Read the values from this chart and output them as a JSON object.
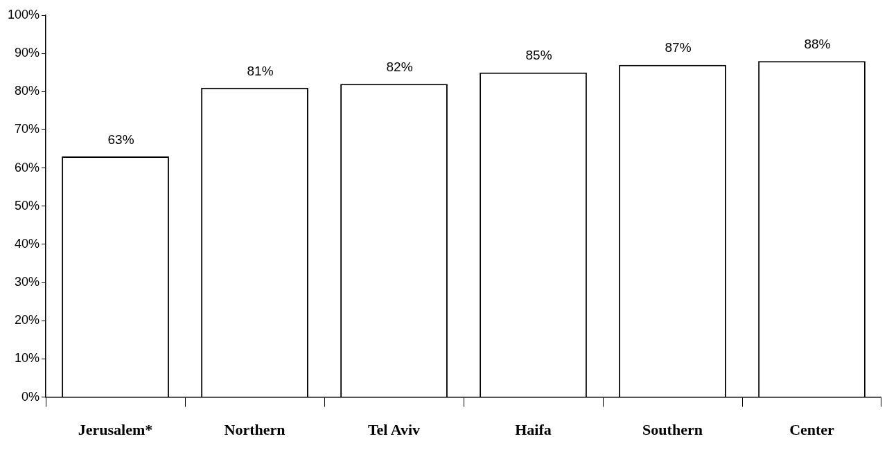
{
  "chart_data": {
    "type": "bar",
    "categories": [
      "Jerusalem*",
      "Northern",
      "Tel Aviv",
      "Haifa",
      "Southern",
      "Center"
    ],
    "values": [
      63,
      81,
      82,
      85,
      87,
      88
    ],
    "color": "#ffffff",
    "ylim": [
      0,
      100
    ],
    "yticks": [
      {
        "value": 0,
        "label": "0%"
      },
      {
        "value": 10,
        "label": "10%"
      },
      {
        "value": 20,
        "label": "20%"
      },
      {
        "value": 30,
        "label": "30%"
      },
      {
        "value": 40,
        "label": "40%"
      },
      {
        "value": 50,
        "label": "50%"
      },
      {
        "value": 60,
        "label": "60%"
      },
      {
        "value": 70,
        "label": "70%"
      },
      {
        "value": 80,
        "label": "80%"
      },
      {
        "value": 90,
        "label": "90%"
      },
      {
        "value": 100,
        "label": "100%"
      }
    ],
    "value_labels": [
      "63%",
      "81%",
      "82%",
      "85%",
      "87%",
      "88%"
    ],
    "grid": false,
    "legend": false
  }
}
